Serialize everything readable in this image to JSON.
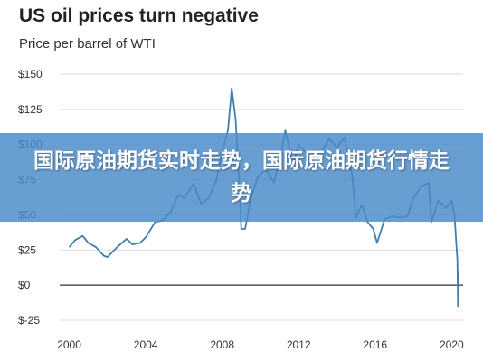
{
  "header": {
    "title": "US oil prices turn negative",
    "subtitle": "Price per barrel of WTI"
  },
  "banner": {
    "text": "国际原油期货实时走势，国际原油期货行情走势"
  },
  "colors": {
    "line": "#3f7fae",
    "grid": "#dddddd",
    "zero_line": "#333333",
    "banner": "#4b8cc8"
  },
  "chart_data": {
    "type": "line",
    "title": "US oil prices turn negative",
    "subtitle": "Price per barrel of WTI",
    "xlabel": "",
    "ylabel": "",
    "xlim": [
      1999.5,
      2020.6
    ],
    "ylim": [
      -25,
      150
    ],
    "x_ticks": [
      2000,
      2004,
      2008,
      2012,
      2016,
      2020
    ],
    "y_ticks": [
      -25,
      0,
      25,
      50,
      75,
      100,
      125,
      150
    ],
    "y_tick_labels": [
      "$-25",
      "$0",
      "$25",
      "$50",
      "$75",
      "$100",
      "$125",
      "$150"
    ],
    "grid": "horizontal",
    "series": [
      {
        "x": [
          2000.0,
          2000.3,
          2000.7,
          2001.0,
          2001.4,
          2001.8,
          2002.0,
          2002.5,
          2003.0,
          2003.3,
          2003.7,
          2004.0,
          2004.5,
          2004.9,
          2005.3,
          2005.7,
          2006.0,
          2006.5,
          2006.9,
          2007.3,
          2007.7,
          2008.0,
          2008.3,
          2008.5,
          2008.7,
          2008.9,
          2009.0,
          2009.2,
          2009.5,
          2009.9,
          2010.3,
          2010.7,
          2011.0,
          2011.3,
          2011.7,
          2012.0,
          2012.4,
          2012.8,
          2013.2,
          2013.6,
          2014.0,
          2014.4,
          2014.8,
          2015.0,
          2015.3,
          2015.6,
          2015.9,
          2016.1,
          2016.5,
          2016.9,
          2017.3,
          2017.7,
          2018.0,
          2018.4,
          2018.8,
          2018.95,
          2019.3,
          2019.7,
          2020.0,
          2020.15,
          2020.25,
          2020.3,
          2020.33,
          2020.37
        ],
        "values": [
          27,
          32,
          35,
          30,
          27,
          21,
          20,
          27,
          33,
          29,
          30,
          34,
          45,
          46,
          52,
          64,
          62,
          72,
          58,
          62,
          75,
          95,
          110,
          140,
          118,
          70,
          40,
          40,
          62,
          78,
          82,
          73,
          88,
          110,
          87,
          100,
          94,
          88,
          95,
          104,
          98,
          105,
          78,
          48,
          57,
          45,
          40,
          30,
          47,
          49,
          48,
          49,
          62,
          70,
          73,
          45,
          60,
          55,
          60,
          50,
          28,
          18,
          -15,
          10
        ]
      }
    ]
  }
}
